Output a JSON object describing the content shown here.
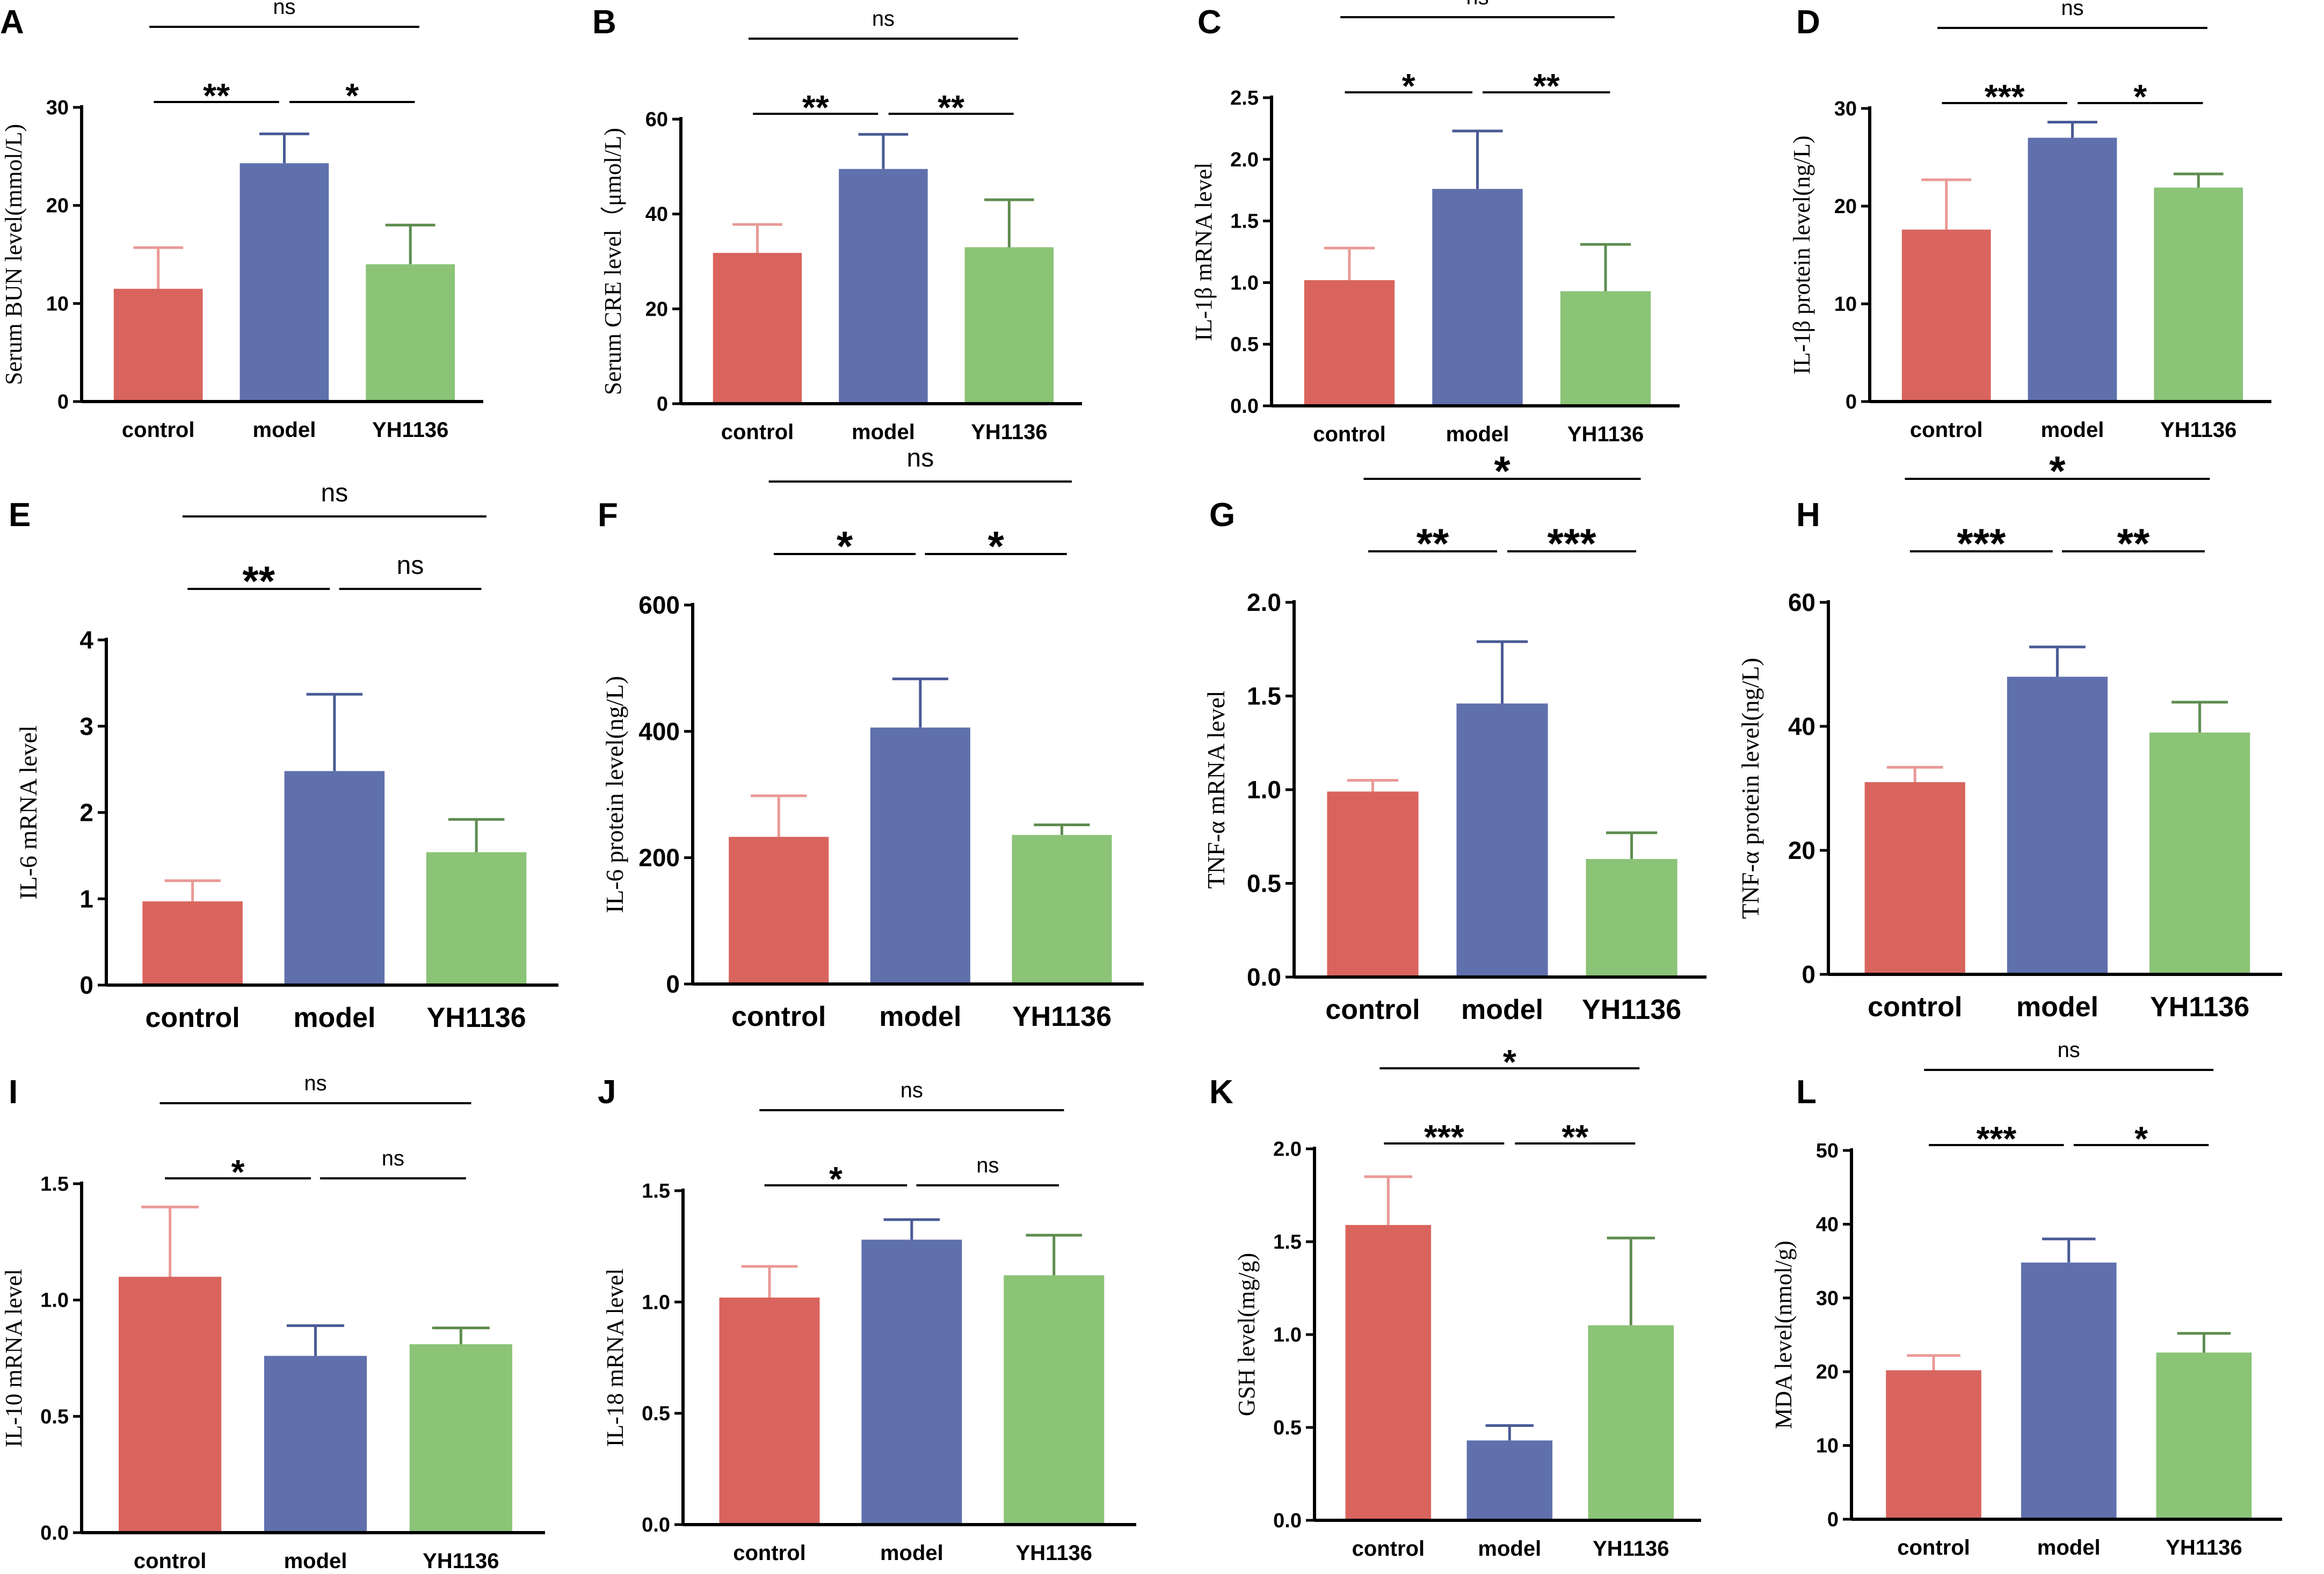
{
  "colors": {
    "control": "#d9645e",
    "model": "#5f70ac",
    "YH1136": "#8bc377",
    "control_err": "#e99a96",
    "model_err": "#4a5a96",
    "YH1136_err": "#5e8c4f",
    "axis": "#000000"
  },
  "chart_data": [
    {
      "panel": "A",
      "type": "bar",
      "categories": [
        "control",
        "model",
        "YH1136"
      ],
      "values": [
        11.5,
        24.3,
        14.0
      ],
      "errors": [
        4.2,
        3.0,
        4.0
      ],
      "ylabel": "Serum BUN level(mmol/L)",
      "ylim": [
        0,
        30
      ],
      "yticks": [
        0,
        10,
        20,
        30
      ],
      "tick_labels": [
        "0",
        "10",
        "20",
        "30"
      ],
      "comparisons": [
        {
          "from": 0,
          "to": 1,
          "label": "**"
        },
        {
          "from": 1,
          "to": 2,
          "label": "*"
        },
        {
          "from": 0,
          "to": 2,
          "label": "ns"
        }
      ]
    },
    {
      "panel": "B",
      "type": "bar",
      "categories": [
        "control",
        "model",
        "YH1136"
      ],
      "values": [
        31.8,
        49.5,
        33.0
      ],
      "errors": [
        6.0,
        7.3,
        10.0
      ],
      "ylabel": "Serum CRE level（μmol/L)",
      "ylim": [
        0,
        60
      ],
      "yticks": [
        0,
        20,
        40,
        60
      ],
      "tick_labels": [
        "0",
        "20",
        "40",
        "60"
      ],
      "comparisons": [
        {
          "from": 0,
          "to": 1,
          "label": "**"
        },
        {
          "from": 1,
          "to": 2,
          "label": "**"
        },
        {
          "from": 0,
          "to": 2,
          "label": "ns"
        }
      ]
    },
    {
      "panel": "C",
      "type": "bar",
      "categories": [
        "control",
        "model",
        "YH1136"
      ],
      "values": [
        1.02,
        1.76,
        0.93
      ],
      "errors": [
        0.26,
        0.47,
        0.38
      ],
      "ylabel": "IL-1β mRNA level",
      "ylim": [
        0,
        2.5
      ],
      "yticks": [
        0,
        0.5,
        1.0,
        1.5,
        2.0,
        2.5
      ],
      "tick_labels": [
        "0.0",
        "0.5",
        "1.0",
        "1.5",
        "2.0",
        "2.5"
      ],
      "comparisons": [
        {
          "from": 0,
          "to": 1,
          "label": "*"
        },
        {
          "from": 1,
          "to": 2,
          "label": "**"
        },
        {
          "from": 0,
          "to": 2,
          "label": "ns"
        }
      ]
    },
    {
      "panel": "D",
      "type": "bar",
      "categories": [
        "control",
        "model",
        "YH1136"
      ],
      "values": [
        17.6,
        27.0,
        21.9
      ],
      "errors": [
        5.1,
        1.6,
        1.4
      ],
      "ylabel": "IL-1β protein level(ng/L)",
      "ylim": [
        0,
        30
      ],
      "yticks": [
        0,
        10,
        20,
        30
      ],
      "tick_labels": [
        "0",
        "10",
        "20",
        "30"
      ],
      "comparisons": [
        {
          "from": 0,
          "to": 1,
          "label": "***"
        },
        {
          "from": 1,
          "to": 2,
          "label": "*"
        },
        {
          "from": 0,
          "to": 2,
          "label": "ns"
        }
      ]
    },
    {
      "panel": "E",
      "type": "bar",
      "categories": [
        "control",
        "model",
        "YH1136"
      ],
      "values": [
        0.97,
        2.48,
        1.54
      ],
      "errors": [
        0.24,
        0.89,
        0.38
      ],
      "ylabel": "IL-6  mRNA level",
      "ylim": [
        0,
        4
      ],
      "yticks": [
        0,
        1,
        2,
        3,
        4
      ],
      "tick_labels": [
        "0",
        "1",
        "2",
        "3",
        "4"
      ],
      "comparisons": [
        {
          "from": 0,
          "to": 1,
          "label": "**"
        },
        {
          "from": 1,
          "to": 2,
          "label": "ns"
        },
        {
          "from": 0,
          "to": 2,
          "label": "ns"
        }
      ]
    },
    {
      "panel": "F",
      "type": "bar",
      "categories": [
        "control",
        "model",
        "YH1136"
      ],
      "values": [
        233,
        406,
        236
      ],
      "errors": [
        65,
        77,
        16
      ],
      "ylabel": "IL-6 protein level(ng/L)",
      "ylim": [
        0,
        600
      ],
      "yticks": [
        0,
        200,
        400,
        600
      ],
      "tick_labels": [
        "0",
        "200",
        "400",
        "600"
      ],
      "comparisons": [
        {
          "from": 0,
          "to": 1,
          "label": "*"
        },
        {
          "from": 1,
          "to": 2,
          "label": "*"
        },
        {
          "from": 0,
          "to": 2,
          "label": "ns"
        }
      ]
    },
    {
      "panel": "G",
      "type": "bar",
      "categories": [
        "control",
        "model",
        "YH1136"
      ],
      "values": [
        0.99,
        1.46,
        0.63
      ],
      "errors": [
        0.06,
        0.33,
        0.14
      ],
      "ylabel": "TNF-α  mRNA level",
      "ylim": [
        0,
        2.0
      ],
      "yticks": [
        0,
        0.5,
        1.0,
        1.5,
        2.0
      ],
      "tick_labels": [
        "0.0",
        "0.5",
        "1.0",
        "1.5",
        "2.0"
      ],
      "comparisons": [
        {
          "from": 0,
          "to": 1,
          "label": "**"
        },
        {
          "from": 1,
          "to": 2,
          "label": "***"
        },
        {
          "from": 0,
          "to": 2,
          "label": "*"
        }
      ]
    },
    {
      "panel": "H",
      "type": "bar",
      "categories": [
        "control",
        "model",
        "YH1136"
      ],
      "values": [
        31.0,
        48.0,
        39.0
      ],
      "errors": [
        2.4,
        4.8,
        4.9
      ],
      "ylabel": "TNF-α protein level(ng/L)",
      "ylim": [
        0,
        60
      ],
      "yticks": [
        0,
        20,
        40,
        60
      ],
      "tick_labels": [
        "0",
        "20",
        "40",
        "60"
      ],
      "comparisons": [
        {
          "from": 0,
          "to": 1,
          "label": "***"
        },
        {
          "from": 1,
          "to": 2,
          "label": "**"
        },
        {
          "from": 0,
          "to": 2,
          "label": "*"
        }
      ]
    },
    {
      "panel": "I",
      "type": "bar",
      "categories": [
        "control",
        "model",
        "YH1136"
      ],
      "values": [
        1.1,
        0.76,
        0.81
      ],
      "errors": [
        0.3,
        0.13,
        0.07
      ],
      "ylabel": "IL-10  mRNA level",
      "ylim": [
        0,
        1.5
      ],
      "yticks": [
        0,
        0.5,
        1.0,
        1.5
      ],
      "tick_labels": [
        "0.0",
        "0.5",
        "1.0",
        "1.5"
      ],
      "comparisons": [
        {
          "from": 0,
          "to": 1,
          "label": "*"
        },
        {
          "from": 1,
          "to": 2,
          "label": "ns"
        },
        {
          "from": 0,
          "to": 2,
          "label": "ns"
        }
      ]
    },
    {
      "panel": "J",
      "type": "bar",
      "categories": [
        "control",
        "model",
        "YH1136"
      ],
      "values": [
        1.02,
        1.28,
        1.12
      ],
      "errors": [
        0.14,
        0.09,
        0.18
      ],
      "ylabel": "IL-18  mRNA level",
      "ylim": [
        0,
        1.5
      ],
      "yticks": [
        0,
        0.5,
        1.0,
        1.5
      ],
      "tick_labels": [
        "0.0",
        "0.5",
        "1.0",
        "1.5"
      ],
      "comparisons": [
        {
          "from": 0,
          "to": 1,
          "label": "*"
        },
        {
          "from": 1,
          "to": 2,
          "label": "ns"
        },
        {
          "from": 0,
          "to": 2,
          "label": "ns"
        }
      ]
    },
    {
      "panel": "K",
      "type": "bar",
      "categories": [
        "control",
        "model",
        "YH1136"
      ],
      "values": [
        1.59,
        0.43,
        1.05
      ],
      "errors": [
        0.26,
        0.08,
        0.47
      ],
      "ylabel": "GSH level(mg/g)",
      "ylim": [
        0,
        2.0
      ],
      "yticks": [
        0,
        0.5,
        1.0,
        1.5,
        2.0
      ],
      "tick_labels": [
        "0.0",
        "0.5",
        "1.0",
        "1.5",
        "2.0"
      ],
      "comparisons": [
        {
          "from": 0,
          "to": 1,
          "label": "***"
        },
        {
          "from": 1,
          "to": 2,
          "label": "**"
        },
        {
          "from": 0,
          "to": 2,
          "label": "*"
        }
      ]
    },
    {
      "panel": "L",
      "type": "bar",
      "categories": [
        "control",
        "model",
        "YH1136"
      ],
      "values": [
        20.2,
        34.8,
        22.6
      ],
      "errors": [
        2.0,
        3.2,
        2.6
      ],
      "ylabel": "MDA level(nmol/g)",
      "ylim": [
        0,
        50
      ],
      "yticks": [
        0,
        10,
        20,
        30,
        40,
        50
      ],
      "tick_labels": [
        "0",
        "10",
        "20",
        "30",
        "40",
        "50"
      ],
      "comparisons": [
        {
          "from": 0,
          "to": 1,
          "label": "***"
        },
        {
          "from": 1,
          "to": 2,
          "label": "*"
        },
        {
          "from": 0,
          "to": 2,
          "label": "ns"
        }
      ]
    }
  ]
}
